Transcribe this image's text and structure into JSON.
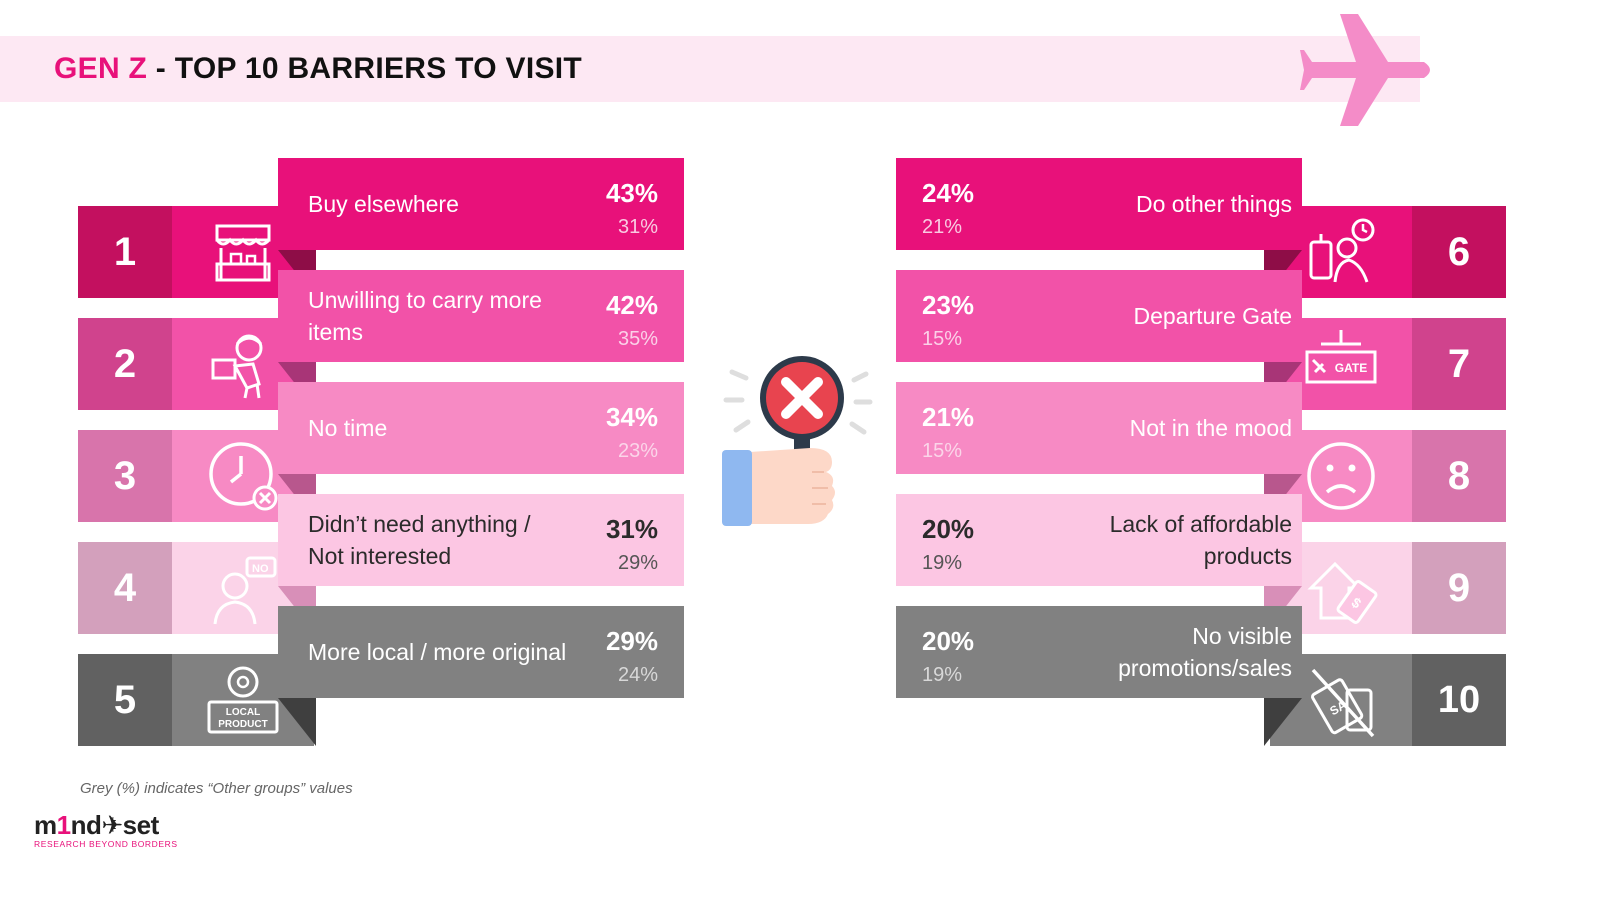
{
  "title": {
    "highlight": "GEN Z",
    "rest": " - TOP 10 BARRIERS TO VISIT"
  },
  "colors": {
    "accent": "#e8117a",
    "header_band": "#fde8f3",
    "plane": "#f48cc8"
  },
  "barriers_left": [
    {
      "rank": "1",
      "label": "Buy elsewhere",
      "pct": "43%",
      "other_pct": "31%",
      "icon": "market-stall-icon",
      "banner_color": "#e8117a",
      "num_color": "#c3105f",
      "icon_bg": "#e8117a",
      "fold_color": "#8e0d47",
      "other_color": "#f9c9e1"
    },
    {
      "rank": "2",
      "label": "Unwilling to carry more items",
      "pct": "42%",
      "other_pct": "35%",
      "icon": "person-carrying-box-icon",
      "banner_color": "#f252a8",
      "num_color": "#d0438d",
      "icon_bg": "#f252a8",
      "fold_color": "#a83577",
      "other_color": "#fbd0e8"
    },
    {
      "rank": "3",
      "label": "No time",
      "pct": "34%",
      "other_pct": "23%",
      "icon": "clock-cancel-icon",
      "banner_color": "#f78ac4",
      "num_color": "#d874ab",
      "icon_bg": "#f78ac4",
      "fold_color": "#b8578d",
      "other_color": "#fbd5e9"
    },
    {
      "rank": "4",
      "label": "Didn’t need anything / Not interested",
      "pct": "31%",
      "other_pct": "29%",
      "icon": "person-saying-no-icon",
      "banner_color": "#fcc6e3",
      "num_color": "#d3a0bc",
      "icon_bg": "#fbd3e8",
      "fold_color": "#d88fb8",
      "text_color": "#2b2b2b",
      "other_color": "#555555"
    },
    {
      "rank": "5",
      "label": "More local / more original",
      "pct": "29%",
      "other_pct": "24%",
      "icon": "local-product-icon",
      "banner_color": "#818181",
      "num_color": "#616161",
      "icon_bg": "#818181",
      "fold_color": "#3f3f3f",
      "other_color": "#d8d8d8"
    }
  ],
  "barriers_right": [
    {
      "rank": "6",
      "label": "Do other things",
      "pct": "24%",
      "other_pct": "21%",
      "icon": "traveler-with-luggage-icon",
      "banner_color": "#e8117a",
      "num_color": "#c3105f",
      "icon_bg": "#e8117a",
      "fold_color": "#8e0d47",
      "other_color": "#f9c9e1"
    },
    {
      "rank": "7",
      "label": "Departure Gate",
      "pct": "23%",
      "other_pct": "15%",
      "icon": "gate-sign-icon",
      "gate_text": "GATE",
      "banner_color": "#f252a8",
      "num_color": "#d0438d",
      "icon_bg": "#f252a8",
      "fold_color": "#a83577",
      "other_color": "#fbd0e8"
    },
    {
      "rank": "8",
      "label": "Not in the mood",
      "pct": "21%",
      "other_pct": "15%",
      "icon": "sad-face-icon",
      "banner_color": "#f78ac4",
      "num_color": "#d874ab",
      "icon_bg": "#f78ac4",
      "fold_color": "#b8578d",
      "other_color": "#fbd5e9"
    },
    {
      "rank": "9",
      "label": "Lack of affordable products",
      "pct": "20%",
      "other_pct": "19%",
      "icon": "price-tag-up-icon",
      "banner_color": "#fcc6e3",
      "num_color": "#d3a0bc",
      "icon_bg": "#fbd3e8",
      "fold_color": "#d88fb8",
      "text_color": "#2b2b2b",
      "other_color": "#555555"
    },
    {
      "rank": "10",
      "label": "No visible promotions/sales",
      "pct": "20%",
      "other_pct": "19%",
      "icon": "no-sale-tag-icon",
      "banner_color": "#818181",
      "num_color": "#616161",
      "icon_bg": "#818181",
      "fold_color": "#3f3f3f",
      "other_color": "#d8d8d8"
    }
  ],
  "footnote": "Grey (%) indicates “Other groups” values",
  "logo": {
    "pre": "m",
    "one": "1",
    "post": "nd✈set",
    "tagline": "RESEARCH BEYOND BORDERS"
  }
}
